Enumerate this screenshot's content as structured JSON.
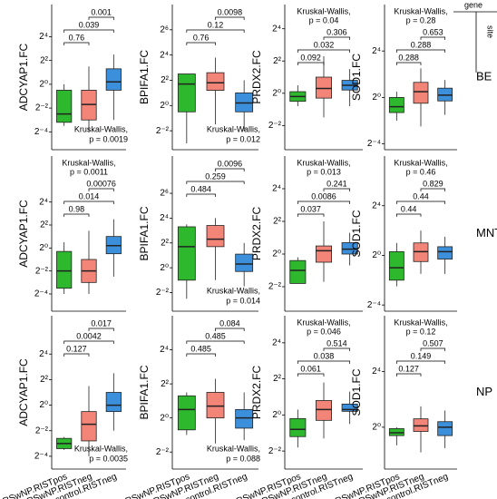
{
  "facet_labels": {
    "col": "gene",
    "row": "site"
  },
  "rows": [
    "BE",
    "MNT",
    "NP"
  ],
  "categories": [
    "CRSwNP.RISTpos",
    "CRSwNP.RISTneg",
    "control.RISTneg"
  ],
  "colors": [
    "#2eb82e",
    "#f28478",
    "#3b8fdb"
  ],
  "log_base": 2,
  "chart_data": [
    {
      "type": "box",
      "ylabel": "ADCYAP1.FC",
      "ylim": [
        0.0221,
        104
      ],
      "log_y": true,
      "yticks": [
        {
          "value": 0.0625,
          "label": "2⁻⁴"
        },
        {
          "value": 0.25,
          "label": "2⁻²"
        },
        {
          "value": 1,
          "label": "2⁰"
        },
        {
          "value": 4,
          "label": "2²"
        },
        {
          "value": 16,
          "label": "2⁴"
        }
      ],
      "boxes": [
        [
          0.0884,
          0.109,
          0.177,
          0.707,
          1
        ],
        [
          0.0625,
          0.125,
          0.308,
          0.707,
          2.83
        ],
        [
          0.125,
          0.707,
          1.15,
          2.46,
          5.66
        ]
      ],
      "p_values": [
        0.76,
        0.039,
        0.001
      ],
      "kw": [
        "Kruskal-Wallis,",
        "p = 0.0019"
      ],
      "kw_position": "bottom"
    },
    {
      "type": "box",
      "ylabel": "BPIFA1.FC",
      "ylim": [
        0.0884,
        256
      ],
      "log_y": true,
      "yticks": [
        {
          "value": 0.25,
          "label": "2⁻²"
        },
        {
          "value": 1,
          "label": "2⁰"
        },
        {
          "value": 4,
          "label": "2²"
        },
        {
          "value": 16,
          "label": "2⁴"
        },
        {
          "value": 64,
          "label": "2⁶"
        }
      ],
      "boxes": [
        [
          0.125,
          0.707,
          3.25,
          5.66,
          5.66
        ],
        [
          0.354,
          2.3,
          3.48,
          6.06,
          13.9
        ],
        [
          0.25,
          0.707,
          1.15,
          2,
          4
        ]
      ],
      "p_values": [
        0.76,
        0.12,
        0.0098
      ],
      "kw": [
        "Kruskal-Wallis,",
        "p = 0.012"
      ],
      "kw_position": "bottom"
    },
    {
      "type": "box",
      "ylabel": "PRDX2.FC",
      "ylim": [
        0.0884,
        45.3
      ],
      "log_y": true,
      "yticks": [
        {
          "value": 0.25,
          "label": "2⁻²"
        },
        {
          "value": 1,
          "label": "2⁰"
        },
        {
          "value": 4,
          "label": "2²"
        },
        {
          "value": 16,
          "label": "2⁴"
        }
      ],
      "boxes": [
        [
          0.574,
          0.707,
          0.871,
          1.07,
          1.41
        ],
        [
          0.354,
          0.812,
          1.23,
          2,
          4.92
        ],
        [
          0.574,
          1.15,
          1.41,
          1.74,
          2.83
        ]
      ],
      "p_values": [
        0.092,
        0.032,
        0.306
      ],
      "kw": [
        "Kruskal-Wallis,",
        "p = 0.04"
      ],
      "kw_position": "top"
    },
    {
      "type": "box",
      "ylabel": "SOD1.FC",
      "ylim": [
        0.0442,
        256
      ],
      "log_y": true,
      "yticks": [
        {
          "value": 0.0625,
          "label": "2⁻⁴"
        },
        {
          "value": 1,
          "label": "2⁰"
        },
        {
          "value": 16,
          "label": "2⁴"
        }
      ],
      "boxes": [
        [
          0.25,
          0.406,
          0.574,
          1,
          1.41
        ],
        [
          0.177,
          0.707,
          1.41,
          2.46,
          5.66
        ],
        [
          0.354,
          0.812,
          1.15,
          1.74,
          2.83
        ]
      ],
      "p_values": [
        0.288,
        0.288,
        0.653
      ],
      "kw": [
        "Kruskal-Wallis,",
        "p = 0.28"
      ],
      "kw_position": "top"
    },
    {
      "type": "box",
      "ylabel": "ADCYAP1.FC",
      "ylim": [
        0.0221,
        256
      ],
      "log_y": true,
      "yticks": [
        {
          "value": 0.0625,
          "label": "2⁻⁴"
        },
        {
          "value": 0.25,
          "label": "2⁻²"
        },
        {
          "value": 1,
          "label": "2⁰"
        },
        {
          "value": 4,
          "label": "2²"
        },
        {
          "value": 16,
          "label": "2⁴"
        }
      ],
      "boxes": [
        [
          0.0625,
          0.0884,
          0.25,
          0.812,
          1.41
        ],
        [
          0.0625,
          0.125,
          0.25,
          0.5,
          2.83
        ],
        [
          0.177,
          0.707,
          1.15,
          2,
          5.66
        ]
      ],
      "p_values": [
        0.98,
        0.014,
        0.00076
      ],
      "kw": [
        "Kruskal-Wallis,",
        "p = 0.0011"
      ],
      "kw_position": "top"
    },
    {
      "type": "box",
      "ylabel": "BPIFA1.FC",
      "ylim": [
        0.0884,
        512
      ],
      "log_y": true,
      "yticks": [
        {
          "value": 0.25,
          "label": "2⁻²"
        },
        {
          "value": 1,
          "label": "2⁰"
        },
        {
          "value": 4,
          "label": "2²"
        },
        {
          "value": 16,
          "label": "2⁴"
        },
        {
          "value": 64,
          "label": "2⁶"
        }
      ],
      "boxes": [
        [
          0.177,
          0.5,
          3.25,
          9.85,
          11.3
        ],
        [
          0.5,
          3.25,
          4.92,
          10.6,
          16
        ],
        [
          0.354,
          0.812,
          1.23,
          2.14,
          4
        ]
      ],
      "p_values": [
        0.484,
        0.259,
        0.0096
      ],
      "kw": [
        "Kruskal-Wallis,",
        "p = 0.014"
      ],
      "kw_position": "bottom"
    },
    {
      "type": "box",
      "ylabel": "PRDX2.FC",
      "ylim": [
        0.0884,
        64
      ],
      "log_y": true,
      "yticks": [
        {
          "value": 0.25,
          "label": "2⁻²"
        },
        {
          "value": 1,
          "label": "2⁰"
        },
        {
          "value": 4,
          "label": "2²"
        },
        {
          "value": 16,
          "label": "2⁴"
        }
      ],
      "boxes": [
        [
          0.287,
          0.287,
          0.5,
          0.758,
          0.871
        ],
        [
          0.308,
          0.707,
          1.15,
          1.41,
          4
        ],
        [
          0.616,
          1,
          1.23,
          1.62,
          2.46
        ]
      ],
      "p_values": [
        0.037,
        0.0086,
        0.241
      ],
      "kw": [
        "Kruskal-Wallis,",
        "p = 0.013"
      ],
      "kw_position": "top"
    },
    {
      "type": "box",
      "ylabel": "SOD1.FC",
      "ylim": [
        0.0442,
        256
      ],
      "log_y": true,
      "yticks": [
        {
          "value": 0.0625,
          "label": "2⁻⁴"
        },
        {
          "value": 1,
          "label": "2⁰"
        },
        {
          "value": 16,
          "label": "2⁴"
        }
      ],
      "boxes": [
        [
          0.177,
          0.25,
          0.5,
          1.23,
          2
        ],
        [
          0.354,
          0.707,
          1.23,
          2,
          4
        ],
        [
          0.354,
          0.812,
          1.23,
          1.62,
          2.83
        ]
      ],
      "p_values": [
        0.44,
        0.44,
        0.829
      ],
      "kw": [
        "Kruskal-Wallis,",
        "p = 0.46"
      ],
      "kw_position": "top"
    },
    {
      "type": "box",
      "ylabel": "ADCYAP1.FC",
      "ylim": [
        0.03125,
        128
      ],
      "log_y": true,
      "yticks": [
        {
          "value": 0.0625,
          "label": "2⁻⁴"
        },
        {
          "value": 0.25,
          "label": "2⁻²"
        },
        {
          "value": 1,
          "label": "2⁰"
        },
        {
          "value": 4,
          "label": "2²"
        },
        {
          "value": 16,
          "label": "2⁴"
        }
      ],
      "boxes": [
        [
          0.0884,
          0.0947,
          0.125,
          0.165,
          0.177
        ],
        [
          0.0625,
          0.144,
          0.354,
          0.707,
          2.83
        ],
        [
          0.25,
          0.707,
          1,
          2,
          5.66
        ]
      ],
      "p_values": [
        0.127,
        0.0042,
        0.017
      ],
      "kw": [
        "Kruskal-Wallis,",
        "p = 0.0035"
      ],
      "kw_position": "bottom"
    },
    {
      "type": "box",
      "ylabel": "BPIFA1.FC",
      "ylim": [
        0.125,
        64
      ],
      "log_y": true,
      "yticks": [
        {
          "value": 0.25,
          "label": "2⁻²"
        },
        {
          "value": 1,
          "label": "2⁰"
        },
        {
          "value": 4,
          "label": "2²"
        },
        {
          "value": 16,
          "label": "2⁴"
        }
      ],
      "boxes": [
        [
          0.5,
          0.616,
          1.41,
          2.46,
          2.83
        ],
        [
          0.354,
          1,
          1.62,
          2.83,
          4.92
        ],
        [
          0.406,
          0.66,
          1,
          1.41,
          2.83
        ]
      ],
      "p_values": [
        0.485,
        0.485,
        0.084
      ],
      "kw": [
        "Kruskal-Wallis,",
        "p = 0.088"
      ],
      "kw_position": "bottom"
    },
    {
      "type": "box",
      "ylabel": "PRDX2.FC",
      "ylim": [
        0.125,
        45.3
      ],
      "log_y": true,
      "yticks": [
        {
          "value": 0.25,
          "label": "2⁻²"
        },
        {
          "value": 1,
          "label": "2⁰"
        },
        {
          "value": 4,
          "label": "2²"
        },
        {
          "value": 16,
          "label": "2⁴"
        }
      ],
      "boxes": [
        [
          0.287,
          0.435,
          0.574,
          0.871,
          1.23
        ],
        [
          0.406,
          0.812,
          1.23,
          1.74,
          3.48
        ],
        [
          0.707,
          1.15,
          1.23,
          1.52,
          2.46
        ]
      ],
      "p_values": [
        0.061,
        0.038,
        0.514
      ],
      "kw": [
        "Kruskal-Wallis,",
        "p = 0.046"
      ],
      "kw_position": "top"
    },
    {
      "type": "box",
      "ylabel": "SOD1.FC",
      "ylim": [
        0.125,
        256
      ],
      "log_y": true,
      "yticks": [
        {
          "value": 1,
          "label": "2⁰"
        },
        {
          "value": 16,
          "label": "2⁴"
        }
      ],
      "boxes": [
        [
          0.406,
          0.66,
          0.758,
          0.933,
          1
        ],
        [
          0.287,
          0.812,
          1.07,
          1.52,
          2.83
        ],
        [
          0.354,
          0.66,
          1,
          1.32,
          2.3
        ]
      ],
      "p_values": [
        0.127,
        0.149,
        0.507
      ],
      "kw": [
        "Kruskal-Wallis,",
        "p = 0.12"
      ],
      "kw_position": "top"
    }
  ]
}
